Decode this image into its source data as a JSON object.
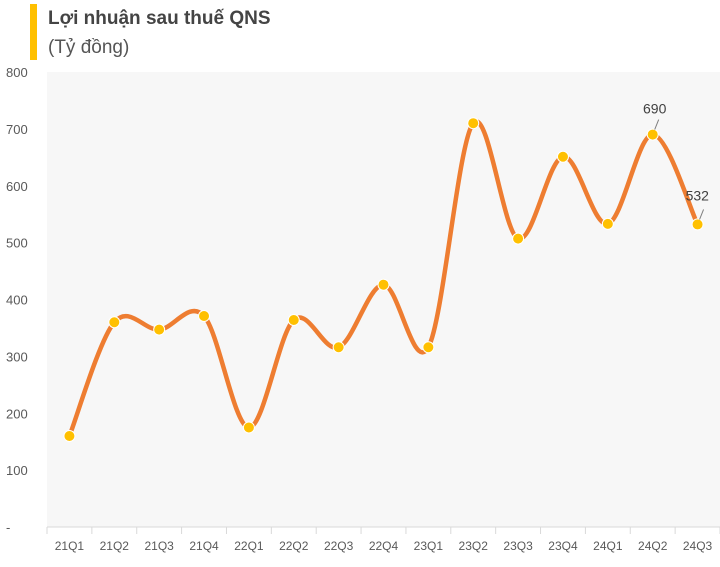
{
  "chart_data": {
    "type": "line",
    "title": "Lợi nhuận sau thuế QNS",
    "subtitle": "(Tỷ đồng)",
    "xlabel": "",
    "ylabel": "",
    "categories": [
      "21Q1",
      "21Q2",
      "21Q3",
      "21Q4",
      "22Q1",
      "22Q2",
      "22Q3",
      "22Q4",
      "23Q1",
      "23Q2",
      "23Q3",
      "23Q4",
      "24Q1",
      "24Q2",
      "24Q3"
    ],
    "series": [
      {
        "values": [
          160,
          360,
          347,
          371,
          175,
          364,
          316,
          426,
          316,
          710,
          507,
          651,
          533,
          690,
          532
        ]
      }
    ],
    "data_labels": [
      {
        "category": "24Q2",
        "text": "690"
      },
      {
        "category": "24Q3",
        "text": "532"
      }
    ],
    "y_ticks": [
      "-",
      "100",
      "200",
      "300",
      "400",
      "500",
      "600",
      "700",
      "800"
    ],
    "ylim": [
      0,
      800
    ],
    "grid": false,
    "smooth": true,
    "colors": {
      "line": "#ee7d31",
      "marker": "#ffc000",
      "accent": "#ffc000",
      "plot_background": "#f7f7f7"
    }
  }
}
